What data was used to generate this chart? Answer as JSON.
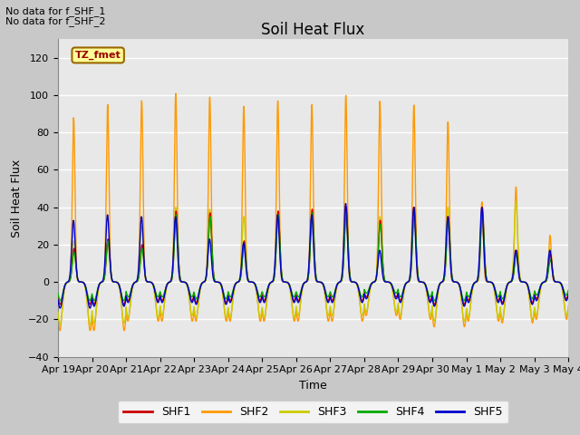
{
  "title": "Soil Heat Flux",
  "xlabel": "Time",
  "ylabel": "Soil Heat Flux",
  "ylim": [
    -40,
    130
  ],
  "note_lines": [
    "No data for f_SHF_1",
    "No data for f_SHF_2"
  ],
  "tz_label": "TZ_fmet",
  "x_tick_labels": [
    "Apr 19",
    "Apr 20",
    "Apr 21",
    "Apr 22",
    "Apr 23",
    "Apr 24",
    "Apr 25",
    "Apr 26",
    "Apr 27",
    "Apr 28",
    "Apr 29",
    "Apr 30",
    "May 1",
    "May 2",
    "May 3",
    "May 4"
  ],
  "legend_entries": [
    {
      "label": "SHF1",
      "color": "#cc0000"
    },
    {
      "label": "SHF2",
      "color": "#ff9900"
    },
    {
      "label": "SHF3",
      "color": "#cccc00"
    },
    {
      "label": "SHF4",
      "color": "#00aa00"
    },
    {
      "label": "SHF5",
      "color": "#0000cc"
    }
  ],
  "shf1_color": "#cc0000",
  "shf2_color": "#ff9900",
  "shf3_color": "#cccc00",
  "shf4_color": "#00aa00",
  "shf5_color": "#0000cc",
  "plot_bg_color": "#e8e8e8",
  "fig_bg_color": "#c8c8c8",
  "grid_color": "#ffffff",
  "yticks": [
    -40,
    -20,
    0,
    20,
    40,
    60,
    80,
    100,
    120
  ],
  "shf2_peaks": [
    88,
    95,
    97,
    101,
    99,
    94,
    97,
    95,
    100,
    97,
    95,
    86,
    43,
    51,
    25
  ],
  "shf2_neg": [
    26,
    26,
    21,
    21,
    21,
    21,
    21,
    21,
    21,
    18,
    20,
    24,
    21,
    22,
    20
  ],
  "shf3_peaks": [
    22,
    22,
    30,
    40,
    39,
    35,
    35,
    35,
    38,
    35,
    40,
    40,
    36,
    43,
    18
  ],
  "shf3_neg": [
    23,
    22,
    19,
    18,
    19,
    19,
    19,
    18,
    18,
    16,
    18,
    21,
    19,
    20,
    18
  ],
  "shf1_peaks": [
    18,
    23,
    20,
    38,
    37,
    22,
    38,
    39,
    40,
    33,
    40,
    35,
    40,
    17,
    15
  ],
  "shf1_neg": [
    12,
    12,
    10,
    10,
    11,
    10,
    10,
    10,
    10,
    8,
    10,
    12,
    10,
    11,
    9
  ],
  "shf4_peaks": [
    16,
    22,
    18,
    36,
    35,
    20,
    36,
    37,
    38,
    31,
    38,
    33,
    38,
    15,
    12
  ],
  "shf4_neg": [
    10,
    10,
    8,
    8,
    9,
    8,
    8,
    8,
    8,
    6,
    8,
    10,
    8,
    9,
    7
  ],
  "shf5_peaks": [
    33,
    36,
    35,
    35,
    23,
    21,
    36,
    36,
    42,
    17,
    40,
    35,
    40,
    17,
    17
  ],
  "shf5_neg": [
    14,
    13,
    11,
    11,
    12,
    11,
    11,
    11,
    11,
    9,
    11,
    13,
    11,
    12,
    10
  ]
}
